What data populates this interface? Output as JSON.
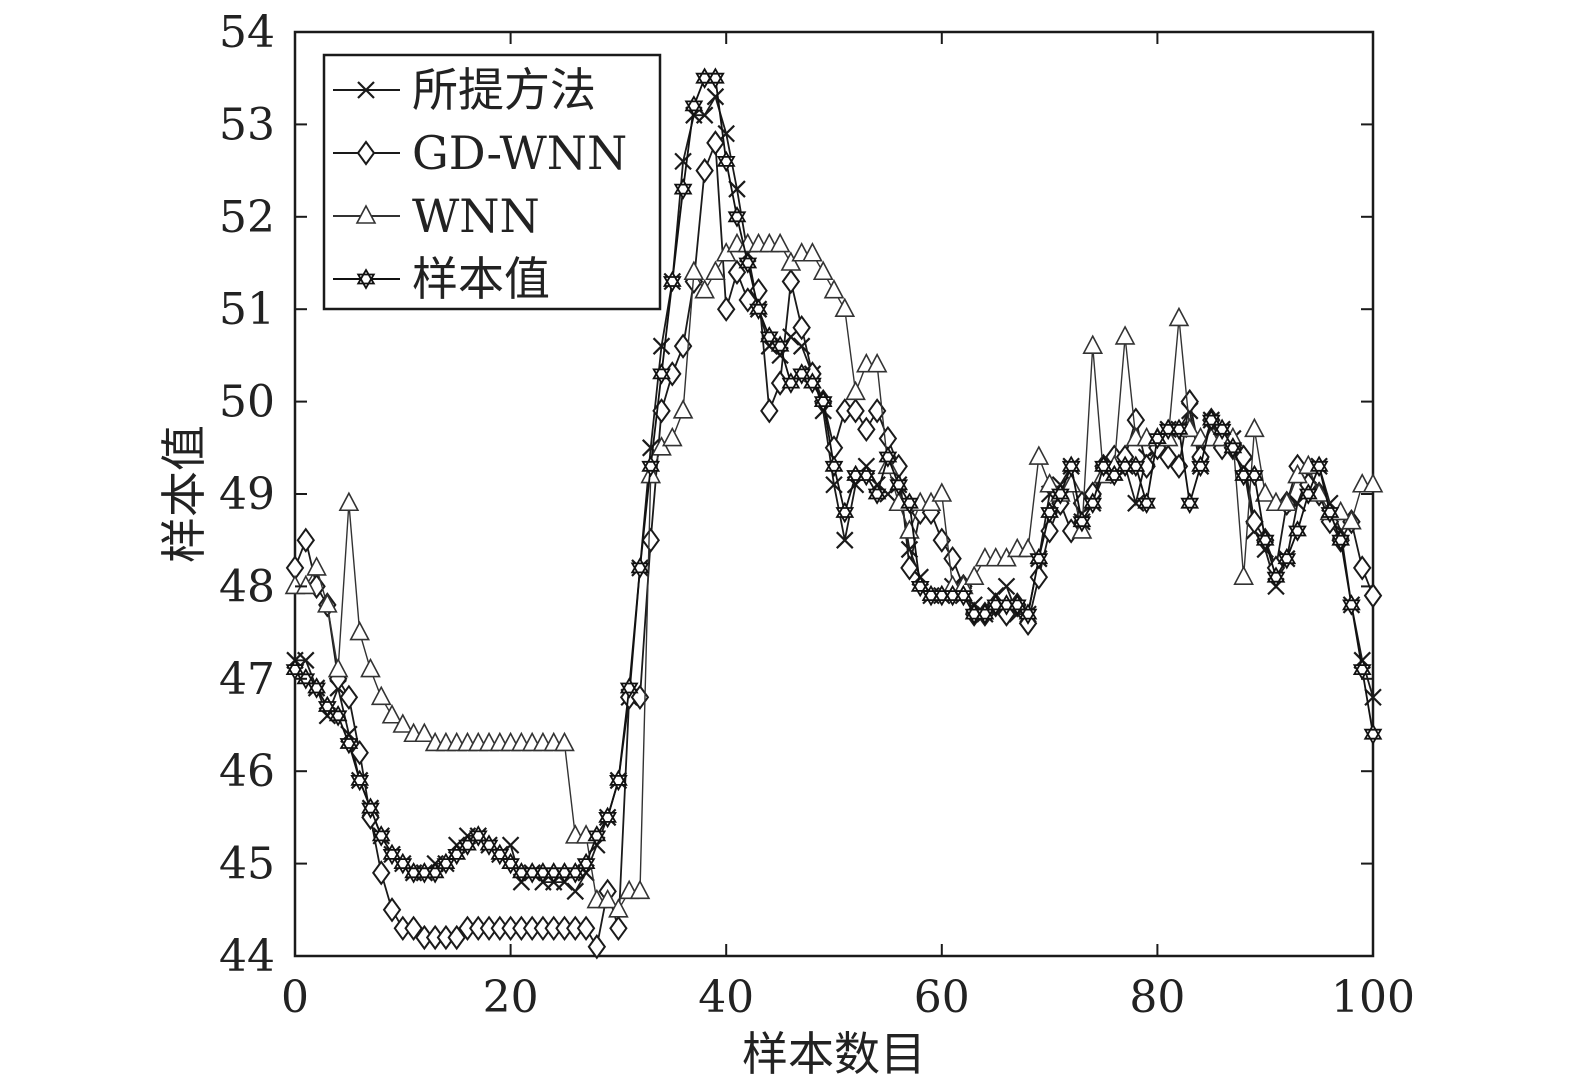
{
  "chart_data": {
    "type": "line",
    "title": "",
    "xlabel": "样本数目",
    "ylabel": "样本值",
    "xlim": [
      0,
      100
    ],
    "ylim": [
      44,
      54
    ],
    "xticks": [
      0,
      20,
      40,
      60,
      80,
      100
    ],
    "yticks": [
      44,
      45,
      46,
      47,
      48,
      49,
      50,
      51,
      52,
      53,
      54
    ],
    "grid": false,
    "legend_position": "top-left",
    "x": [
      0,
      1,
      2,
      3,
      4,
      5,
      6,
      7,
      8,
      9,
      10,
      11,
      12,
      13,
      14,
      15,
      16,
      17,
      18,
      19,
      20,
      21,
      22,
      23,
      24,
      25,
      26,
      27,
      28,
      29,
      30,
      31,
      32,
      33,
      34,
      35,
      36,
      37,
      38,
      39,
      40,
      41,
      42,
      43,
      44,
      45,
      46,
      47,
      48,
      49,
      50,
      51,
      52,
      53,
      54,
      55,
      56,
      57,
      58,
      59,
      60,
      61,
      62,
      63,
      64,
      65,
      66,
      67,
      68,
      69,
      70,
      71,
      72,
      73,
      74,
      75,
      76,
      77,
      78,
      79,
      80,
      81,
      82,
      83,
      84,
      85,
      86,
      87,
      88,
      89,
      90,
      91,
      92,
      93,
      94,
      95,
      96,
      97,
      98,
      99,
      100
    ],
    "series": [
      {
        "name": "所提方法",
        "marker": "x",
        "color": "#1a1a1a",
        "values": [
          47.2,
          47.2,
          46.9,
          46.6,
          46.9,
          46.4,
          45.9,
          45.6,
          45.3,
          45.1,
          45.0,
          44.9,
          44.9,
          45.0,
          45.0,
          45.2,
          45.3,
          45.3,
          45.2,
          45.1,
          45.2,
          44.8,
          44.9,
          44.8,
          44.8,
          44.8,
          44.7,
          44.9,
          45.2,
          45.5,
          45.9,
          46.8,
          48.2,
          49.5,
          50.6,
          51.3,
          52.6,
          53.1,
          53.1,
          53.3,
          52.9,
          52.3,
          51.6,
          51.0,
          50.6,
          50.5,
          50.7,
          50.6,
          50.3,
          49.9,
          49.1,
          48.5,
          49.1,
          49.3,
          49.1,
          49.0,
          49.1,
          48.4,
          48.1,
          47.9,
          47.9,
          48.0,
          47.9,
          47.8,
          47.7,
          47.9,
          48.0,
          47.7,
          47.7,
          48.3,
          49.0,
          49.1,
          49.3,
          48.7,
          48.9,
          49.2,
          49.3,
          49.3,
          48.9,
          49.4,
          49.5,
          49.7,
          49.7,
          49.9,
          49.3,
          49.8,
          49.7,
          49.6,
          49.3,
          48.6,
          48.4,
          48.0,
          48.3,
          48.9,
          49.2,
          49.3,
          48.9,
          48.6,
          47.8,
          47.2,
          46.8
        ]
      },
      {
        "name": "GD-WNN",
        "marker": "diamond",
        "color": "#1a1a1a",
        "values": [
          48.2,
          48.5,
          48.0,
          47.8,
          47.0,
          46.8,
          46.2,
          45.5,
          44.9,
          44.5,
          44.3,
          44.3,
          44.2,
          44.2,
          44.2,
          44.2,
          44.3,
          44.3,
          44.3,
          44.3,
          44.3,
          44.3,
          44.3,
          44.3,
          44.3,
          44.3,
          44.3,
          44.3,
          44.1,
          44.7,
          44.3,
          46.8,
          46.8,
          48.5,
          49.9,
          50.3,
          50.6,
          51.3,
          52.5,
          52.8,
          51.0,
          51.4,
          51.1,
          51.2,
          49.9,
          50.2,
          51.3,
          50.8,
          50.3,
          50.0,
          49.5,
          49.9,
          49.9,
          49.7,
          49.9,
          49.6,
          49.3,
          48.2,
          48.8,
          48.8,
          48.5,
          48.3,
          48.0,
          47.7,
          47.7,
          47.8,
          47.7,
          47.8,
          47.6,
          48.1,
          48.6,
          48.9,
          48.6,
          48.9,
          49.0,
          49.3,
          49.4,
          49.4,
          49.8,
          49.3,
          49.5,
          49.4,
          49.3,
          50.0,
          49.4,
          49.8,
          49.5,
          49.5,
          49.4,
          48.7,
          48.5,
          48.2,
          48.9,
          49.3,
          49.1,
          49.0,
          48.7,
          48.5,
          48.7,
          48.2,
          47.9
        ]
      },
      {
        "name": "WNN",
        "marker": "triangle",
        "color": "#333333",
        "values": [
          48.0,
          48.0,
          48.2,
          47.8,
          47.1,
          48.9,
          47.5,
          47.1,
          46.8,
          46.6,
          46.5,
          46.4,
          46.4,
          46.3,
          46.3,
          46.3,
          46.3,
          46.3,
          46.3,
          46.3,
          46.3,
          46.3,
          46.3,
          46.3,
          46.3,
          46.3,
          45.3,
          45.3,
          44.6,
          44.6,
          44.5,
          44.7,
          44.7,
          49.2,
          49.5,
          49.6,
          49.9,
          51.4,
          51.2,
          51.4,
          51.6,
          51.7,
          51.7,
          51.7,
          51.7,
          51.7,
          51.5,
          51.6,
          51.6,
          51.4,
          51.2,
          51.0,
          50.1,
          50.4,
          50.4,
          49.3,
          48.9,
          48.6,
          48.9,
          48.9,
          49.0,
          48.0,
          48.0,
          48.1,
          48.3,
          48.3,
          48.3,
          48.4,
          48.4,
          49.4,
          49.1,
          49.0,
          49.1,
          48.6,
          50.6,
          49.2,
          49.3,
          50.7,
          49.6,
          49.6,
          49.6,
          49.6,
          50.9,
          49.7,
          49.6,
          49.6,
          49.6,
          49.6,
          48.1,
          49.7,
          49.0,
          48.9,
          48.9,
          49.2,
          49.3,
          49.0,
          48.8,
          48.8,
          48.7,
          49.1,
          49.1
        ]
      },
      {
        "name": "样本值",
        "marker": "star",
        "color": "#111111",
        "values": [
          47.1,
          47.0,
          46.9,
          46.7,
          46.6,
          46.3,
          45.9,
          45.6,
          45.3,
          45.1,
          45.0,
          44.9,
          44.9,
          44.9,
          45.0,
          45.1,
          45.2,
          45.3,
          45.2,
          45.1,
          45.0,
          44.9,
          44.9,
          44.9,
          44.9,
          44.9,
          44.9,
          45.0,
          45.3,
          45.5,
          45.9,
          46.9,
          48.2,
          49.3,
          50.3,
          51.3,
          52.3,
          53.2,
          53.5,
          53.5,
          52.6,
          52.0,
          51.5,
          51.0,
          50.7,
          50.6,
          50.2,
          50.3,
          50.2,
          50.0,
          49.3,
          48.8,
          49.2,
          49.2,
          49.0,
          49.4,
          49.1,
          48.9,
          48.0,
          47.9,
          47.9,
          47.9,
          47.9,
          47.7,
          47.7,
          47.8,
          47.8,
          47.8,
          47.7,
          48.3,
          48.8,
          49.0,
          49.3,
          48.7,
          48.9,
          49.3,
          49.2,
          49.3,
          49.3,
          48.9,
          49.6,
          49.7,
          49.7,
          48.9,
          49.3,
          49.8,
          49.7,
          49.5,
          49.2,
          49.2,
          48.5,
          48.1,
          48.3,
          48.6,
          49.0,
          49.3,
          48.8,
          48.5,
          47.8,
          47.1,
          46.4
        ]
      }
    ]
  }
}
